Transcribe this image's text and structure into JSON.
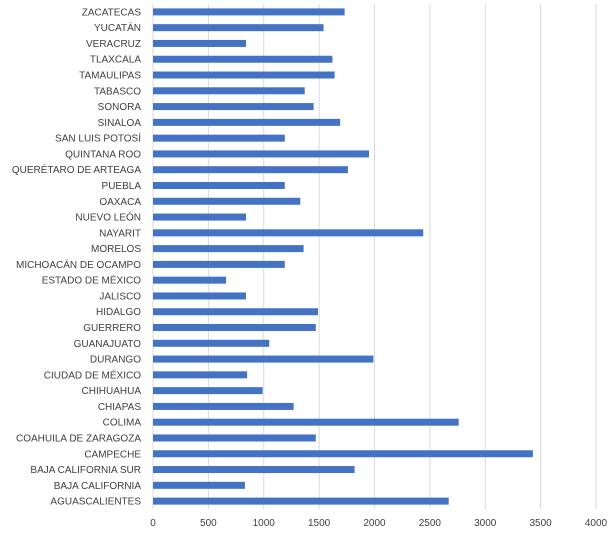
{
  "chart_data": {
    "type": "bar",
    "orientation": "horizontal",
    "categories": [
      "ZACATECAS",
      "YUCATÁN",
      "VERACRUZ",
      "TLAXCALA",
      "TAMAULIPAS",
      "TABASCO",
      "SONORA",
      "SINALOA",
      "SAN LUIS POTOSÍ",
      "QUINTANA ROO",
      "QUERÉTARO DE ARTEAGA",
      "PUEBLA",
      "OAXACA",
      "NUEVO LEÓN",
      "NAYARIT",
      "MORELOS",
      "MICHOACÁN DE OCAMPO",
      "ESTADO DE MÉXICO",
      "JALISCO",
      "HIDALGO",
      "GUERRERO",
      "GUANAJUATO",
      "DURANGO",
      "CIUDAD DE MÉXICO",
      "CHIHUAHUA",
      "CHIAPAS",
      "COLIMA",
      "COAHUILA DE ZARAGOZA",
      "CAMPECHE",
      "BAJA CALIFORNIA SUR",
      "BAJA CALIFORNIA",
      "AGUASCALIENTES"
    ],
    "values": [
      1730,
      1540,
      840,
      1620,
      1640,
      1370,
      1450,
      1690,
      1190,
      1950,
      1760,
      1190,
      1330,
      840,
      2440,
      1360,
      1190,
      660,
      840,
      1490,
      1470,
      1050,
      1990,
      850,
      990,
      1270,
      2760,
      1470,
      3430,
      1820,
      830,
      2670
    ],
    "xlim": [
      0,
      4000
    ],
    "xticks": [
      "0",
      "500",
      "1000",
      "1500",
      "2000",
      "2500",
      "3000",
      "3500",
      "4000"
    ],
    "grid": true,
    "colors": {
      "bar": "#4472c4",
      "grid": "#d9d9d9",
      "text": "#404040"
    }
  }
}
